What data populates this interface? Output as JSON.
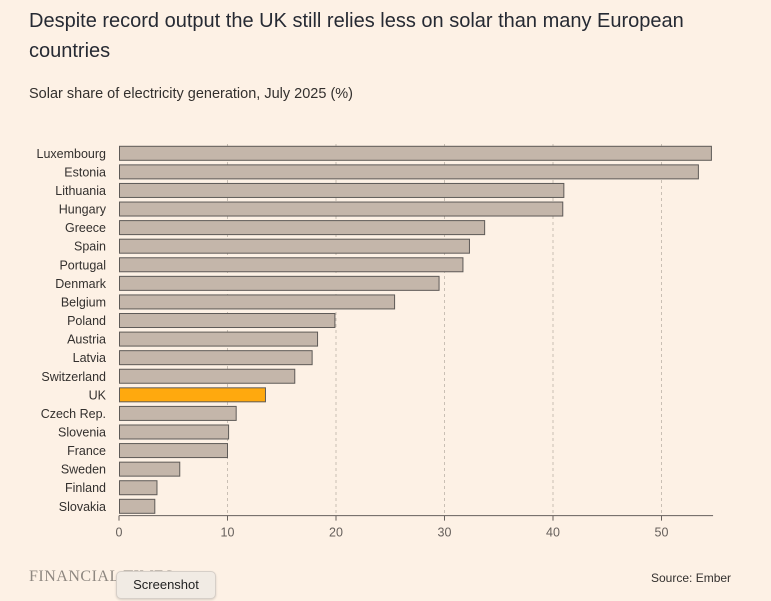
{
  "chart_data": {
    "type": "bar",
    "orientation": "horizontal",
    "title": "Despite record output the UK still relies less on solar than many European countries",
    "subtitle": "Solar share of electricity generation, July 2025 (%)",
    "xlabel": "",
    "ylabel": "",
    "xlim": [
      0,
      55
    ],
    "xticks": [
      0,
      10,
      20,
      30,
      40,
      50
    ],
    "grid": "vertical dashed",
    "categories": [
      "Luxembourg",
      "Estonia",
      "Lithuania",
      "Hungary",
      "Greece",
      "Spain",
      "Portugal",
      "Denmark",
      "Belgium",
      "Poland",
      "Austria",
      "Latvia",
      "Switzerland",
      "UK",
      "Czech Rep.",
      "Slovenia",
      "France",
      "Sweden",
      "Finland",
      "Slovakia"
    ],
    "values": [
      54.6,
      53.4,
      41.0,
      40.9,
      33.7,
      32.3,
      31.7,
      29.5,
      25.4,
      19.9,
      18.3,
      17.8,
      16.2,
      13.5,
      10.8,
      10.1,
      10.0,
      5.6,
      3.5,
      3.3
    ],
    "highlight": "UK",
    "colors": {
      "bar": "#c4b6aa",
      "highlight": "#ffa90e",
      "bar_stroke": "#5e5a57",
      "grid": "#c9bfb4",
      "axis": "#66605c",
      "background": "#fdf1e5"
    }
  },
  "footer": {
    "logo": "FINANCIAL TIMES",
    "source": "Source: Ember",
    "screenshot_label": "Screenshot"
  }
}
